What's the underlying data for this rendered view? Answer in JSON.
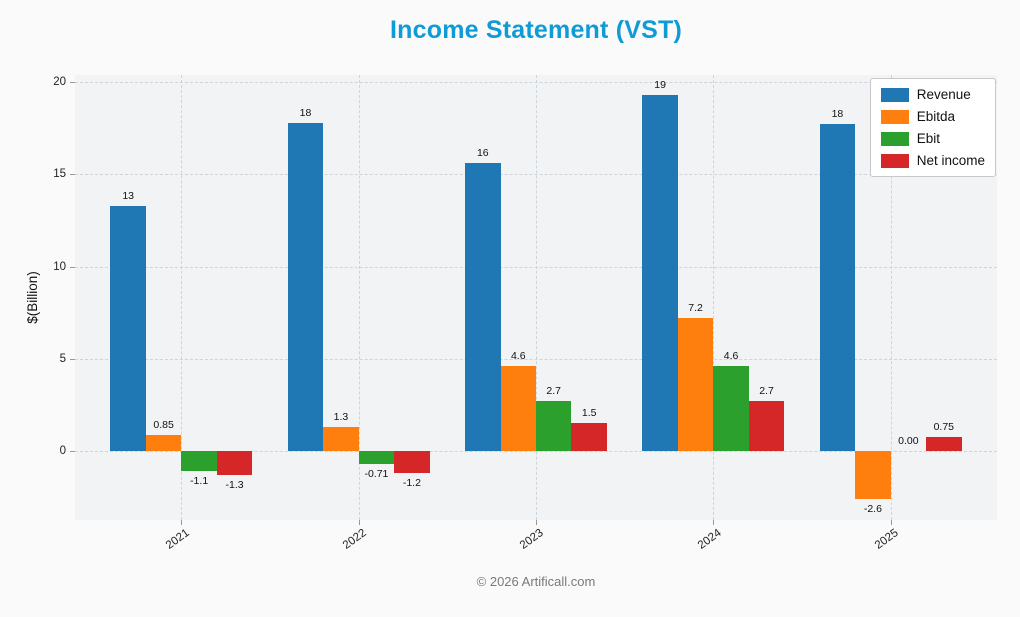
{
  "footer": "© 2026 Artificall.com",
  "chart_data": {
    "type": "bar",
    "title": "Income Statement (VST)",
    "title_color": "#0f9bd5",
    "ylabel": "$(Billion)",
    "categories": [
      "2021",
      "2022",
      "2023",
      "2024",
      "2025"
    ],
    "series": [
      {
        "name": "Revenue",
        "color": "#1f77b4",
        "values": [
          13.3,
          17.8,
          15.6,
          19.3,
          17.7
        ],
        "labels": [
          "13",
          "18",
          "16",
          "19",
          "18"
        ]
      },
      {
        "name": "Ebitda",
        "color": "#ff7f0e",
        "values": [
          0.85,
          1.3,
          4.6,
          7.2,
          -2.6
        ],
        "labels": [
          "0.85",
          "1.3",
          "4.6",
          "7.2",
          "-2.6"
        ]
      },
      {
        "name": "Ebit",
        "color": "#2ca02c",
        "values": [
          -1.1,
          -0.71,
          2.7,
          4.6,
          0
        ],
        "labels": [
          "-1.1",
          "-0.71",
          "2.7",
          "4.6",
          "0.00"
        ]
      },
      {
        "name": "Net income",
        "color": "#d62728",
        "values": [
          -1.3,
          -1.2,
          1.5,
          2.7,
          0.75
        ],
        "labels": [
          "-1.3",
          "-1.2",
          "1.5",
          "2.7",
          "0.75"
        ]
      }
    ],
    "yticks": [
      0,
      5,
      10,
      15,
      20
    ],
    "ylim": [
      -3.74,
      20.38
    ],
    "grid": true,
    "legend_position": "upper right"
  }
}
